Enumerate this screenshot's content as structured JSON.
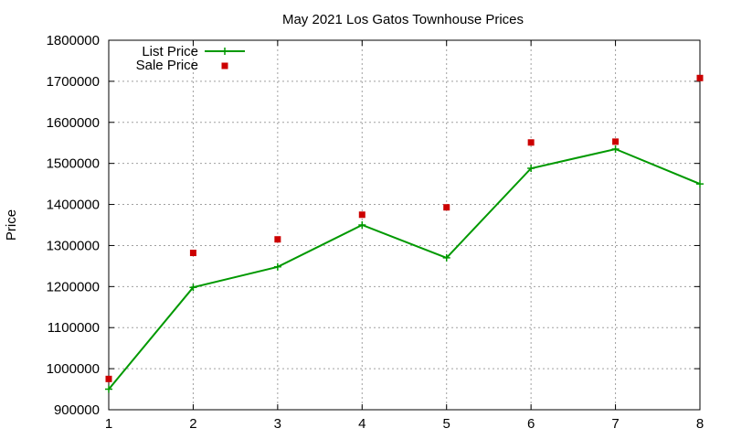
{
  "chart_data": {
    "type": "line",
    "title": "May 2021 Los Gatos Townhouse Prices",
    "xlabel": "",
    "ylabel": "Price",
    "x": [
      1,
      2,
      3,
      4,
      5,
      6,
      7,
      8
    ],
    "xlim": [
      1,
      8
    ],
    "ylim": [
      900000,
      1800000
    ],
    "xticks": [
      1,
      2,
      3,
      4,
      5,
      6,
      7,
      8
    ],
    "yticks": [
      900000,
      1000000,
      1100000,
      1200000,
      1300000,
      1400000,
      1500000,
      1600000,
      1700000,
      1800000
    ],
    "grid": true,
    "legend_position": "top-left",
    "series": [
      {
        "name": "List Price",
        "style": "line-with-plus-markers",
        "color": "#009900",
        "values": [
          950000,
          1198000,
          1248000,
          1350000,
          1270000,
          1488000,
          1535000,
          1450000
        ]
      },
      {
        "name": "Sale Price",
        "style": "square-markers",
        "color": "#cc0000",
        "values": [
          975000,
          1282000,
          1315000,
          1375000,
          1393000,
          1551000,
          1553000,
          1708000
        ]
      }
    ]
  }
}
